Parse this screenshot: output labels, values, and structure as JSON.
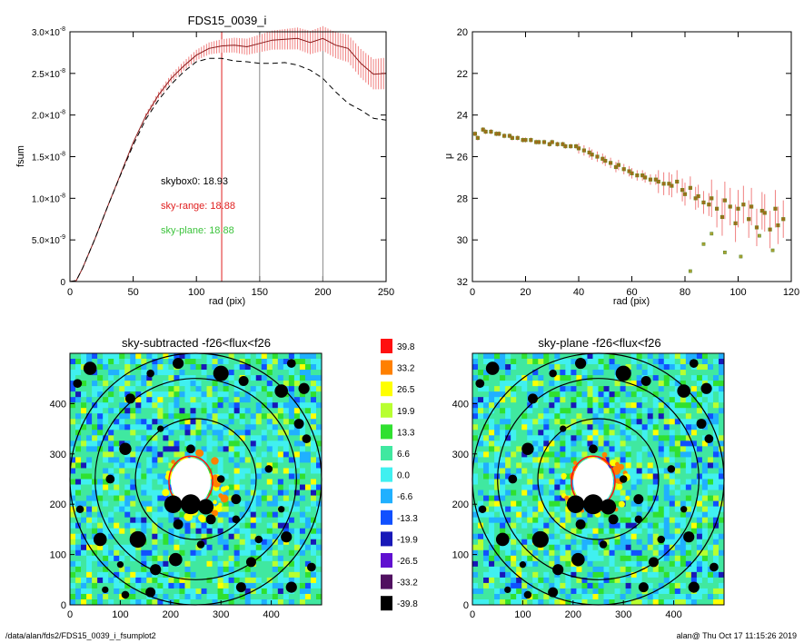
{
  "colors": {
    "model": "#8b1a1a",
    "errband": "#f08080",
    "green": "#3cc33c",
    "red": "#e02020",
    "black": "#000000"
  },
  "footer": {
    "left": "/data/alan/fds2/FDS15_0039_i_fsumplot2",
    "right": "alan@  Thu Oct 17 11:15:26 2019"
  },
  "chart_data": [
    {
      "id": "fsum",
      "type": "line",
      "title": "FDS15_0039_i",
      "xlabel": "rad (pix)",
      "ylabel": "fsum",
      "xlim": [
        0,
        250
      ],
      "ylim": [
        0,
        3e-08
      ],
      "xticks": [
        "0",
        "50",
        "100",
        "150",
        "200",
        "250"
      ],
      "yticks": [
        {
          "m": "0",
          "e": ""
        },
        {
          "m": "5.0×10",
          "e": "-9"
        },
        {
          "m": "1.0×10",
          "e": "-8"
        },
        {
          "m": "1.5×10",
          "e": "-8"
        },
        {
          "m": "2.0×10",
          "e": "-8"
        },
        {
          "m": "2.5×10",
          "e": "-8"
        },
        {
          "m": "3.0×10",
          "e": "-8"
        }
      ],
      "annotations": [
        {
          "text": "skybox0: 18.93",
          "color": "#000000"
        },
        {
          "text": "sky-range: 18.88",
          "color": "#e02020"
        },
        {
          "text": "sky-plane: 18.88",
          "color": "#3cc33c"
        }
      ],
      "vlines": [
        {
          "x": 120,
          "color": "#e02020"
        },
        {
          "x": 150,
          "color": "#888888"
        },
        {
          "x": 200,
          "color": "#888888"
        }
      ],
      "series": [
        {
          "style": "solid",
          "x": [
            0,
            5,
            10,
            20,
            30,
            40,
            50,
            60,
            70,
            80,
            90,
            100,
            110,
            120,
            130,
            140,
            150,
            160,
            170,
            180,
            190,
            200,
            210,
            220,
            230,
            240,
            250
          ],
          "values": [
            0,
            1.2e-10,
            1.6e-09,
            5.2e-09,
            9.1e-09,
            1.29e-08,
            1.67e-08,
            1.99e-08,
            2.24e-08,
            2.44e-08,
            2.59e-08,
            2.72e-08,
            2.8e-08,
            2.83e-08,
            2.84e-08,
            2.82e-08,
            2.86e-08,
            2.9e-08,
            2.91e-08,
            2.92e-08,
            2.87e-08,
            2.92e-08,
            2.84e-08,
            2.8e-08,
            2.62e-08,
            2.49e-08,
            2.5e-08
          ]
        },
        {
          "style": "dashed",
          "x": [
            0,
            5,
            10,
            20,
            30,
            40,
            50,
            60,
            70,
            80,
            90,
            100,
            110,
            120,
            130,
            140,
            150,
            160,
            170,
            180,
            190,
            200,
            210,
            220,
            230,
            240,
            250
          ],
          "values": [
            0,
            1.2e-10,
            1.6e-09,
            5.2e-09,
            9.1e-09,
            1.28e-08,
            1.64e-08,
            1.95e-08,
            2.18e-08,
            2.37e-08,
            2.52e-08,
            2.64e-08,
            2.68e-08,
            2.68e-08,
            2.65e-08,
            2.64e-08,
            2.62e-08,
            2.62e-08,
            2.63e-08,
            2.6e-08,
            2.54e-08,
            2.44e-08,
            2.28e-08,
            2.14e-08,
            2.06e-08,
            1.96e-08,
            1.94e-08
          ]
        }
      ]
    },
    {
      "id": "mu",
      "type": "scatter",
      "title": "",
      "xlabel": "rad (pix)",
      "ylabel": "μ",
      "xlim": [
        0,
        120
      ],
      "ylim": [
        20,
        32
      ],
      "yreversed": true,
      "xticks": [
        "0",
        "20",
        "40",
        "60",
        "80",
        "100",
        "120"
      ],
      "yticks": [
        "20",
        "22",
        "24",
        "26",
        "28",
        "30",
        "32"
      ],
      "x": [
        1,
        2,
        4,
        5,
        7,
        9,
        10,
        12,
        14,
        15,
        17,
        19,
        20,
        22,
        24,
        25,
        27,
        29,
        30,
        32,
        34,
        35,
        37,
        39,
        40,
        42,
        44,
        45,
        47,
        49,
        50,
        52,
        54,
        55,
        57,
        59,
        60,
        62,
        64,
        65,
        67,
        69,
        70,
        72,
        74,
        75,
        77,
        79,
        80,
        82,
        84,
        85,
        87,
        89,
        90,
        92,
        94,
        95,
        97,
        99,
        100,
        102,
        104,
        105,
        107,
        109,
        110,
        112,
        114,
        115,
        117
      ],
      "values": [
        24.9,
        25.1,
        24.7,
        24.8,
        24.8,
        24.9,
        24.9,
        25.0,
        25.0,
        25.1,
        25.1,
        25.2,
        25.2,
        25.2,
        25.3,
        25.3,
        25.3,
        25.4,
        25.3,
        25.4,
        25.4,
        25.5,
        25.5,
        25.5,
        25.6,
        25.7,
        25.8,
        25.9,
        26.0,
        26.1,
        26.2,
        26.3,
        26.5,
        26.4,
        26.6,
        26.7,
        26.8,
        26.9,
        26.9,
        27.0,
        27.1,
        27.1,
        27.2,
        27.3,
        27.3,
        27.4,
        27.2,
        27.6,
        27.8,
        27.5,
        28.0,
        27.9,
        28.2,
        28.3,
        28.0,
        28.5,
        28.9,
        28.1,
        28.4,
        29.2,
        28.5,
        28.3,
        29.0,
        28.4,
        29.4,
        28.6,
        28.7,
        29.5,
        28.5,
        29.3,
        29.0
      ],
      "extra_points": [
        {
          "x": 82,
          "y": 31.5
        },
        {
          "x": 87,
          "y": 30.2
        },
        {
          "x": 90,
          "y": 29.7
        },
        {
          "x": 95,
          "y": 30.6
        },
        {
          "x": 101,
          "y": 30.8
        },
        {
          "x": 108,
          "y": 29.8
        },
        {
          "x": 113,
          "y": 30.5
        }
      ]
    },
    {
      "id": "map1",
      "type": "heatmap",
      "title": "sky-subtracted -f26<flux<f26",
      "xlim": [
        0,
        500
      ],
      "ylim": [
        0,
        500
      ],
      "xticks": [
        "0",
        "100",
        "200",
        "300",
        "400"
      ],
      "yticks": [
        "0",
        "100",
        "200",
        "300",
        "400"
      ],
      "rings": [
        120,
        200,
        250
      ]
    },
    {
      "id": "map2",
      "type": "heatmap",
      "title": "sky-plane -f26<flux<f26",
      "xlim": [
        0,
        500
      ],
      "ylim": [
        0,
        500
      ],
      "xticks": [
        "0",
        "100",
        "200",
        "300",
        "400"
      ],
      "yticks": [
        "0",
        "100",
        "200",
        "300",
        "400"
      ],
      "rings": [
        120,
        200,
        250
      ]
    }
  ],
  "colorbar": {
    "labels": [
      "39.8",
      "33.2",
      "26.5",
      "19.9",
      "13.3",
      "6.6",
      "0.0",
      "-6.6",
      "-13.3",
      "-19.9",
      "-26.5",
      "-33.2",
      "-39.8"
    ],
    "colors": [
      "#ff1010",
      "#ff8000",
      "#ffff00",
      "#b8ff30",
      "#30e030",
      "#40e8a0",
      "#40f0f0",
      "#20b0ff",
      "#1050ff",
      "#1818b8",
      "#6010d0",
      "#501060",
      "#000000"
    ]
  }
}
